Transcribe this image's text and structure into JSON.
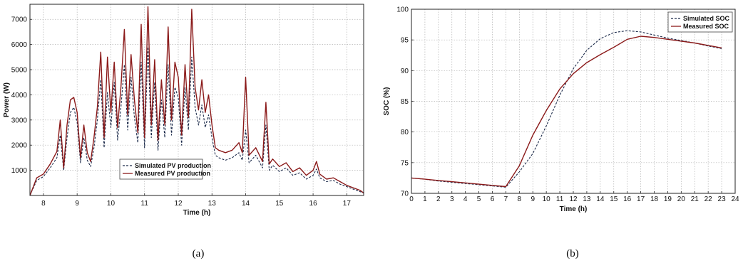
{
  "colors": {
    "simulated": "#1c2a4a",
    "measured": "#8b1a1a",
    "grid": "#b5b5b5"
  },
  "chart_data": [
    {
      "type": "line",
      "caption": "(a)",
      "xlabel": "Time (h)",
      "ylabel": "Power (W)",
      "xlim": [
        7.6,
        17.5
      ],
      "ylim": [
        0,
        7600
      ],
      "xticks": [
        8,
        9,
        10,
        11,
        12,
        13,
        14,
        15,
        16,
        17
      ],
      "yticks": [
        1000,
        2000,
        3000,
        4000,
        5000,
        6000,
        7000
      ],
      "grid": true,
      "legend": "bottom-center",
      "series": [
        {
          "name": "Simulated PV production",
          "style": "dashed",
          "x": [
            7.6,
            7.8,
            8.0,
            8.2,
            8.4,
            8.5,
            8.6,
            8.7,
            8.8,
            8.9,
            9.0,
            9.1,
            9.2,
            9.3,
            9.4,
            9.5,
            9.6,
            9.7,
            9.8,
            9.9,
            10.0,
            10.1,
            10.2,
            10.3,
            10.4,
            10.5,
            10.6,
            10.7,
            10.8,
            10.9,
            11.0,
            11.1,
            11.2,
            11.3,
            11.4,
            11.5,
            11.6,
            11.7,
            11.8,
            11.9,
            12.0,
            12.1,
            12.2,
            12.3,
            12.4,
            12.5,
            12.6,
            12.7,
            12.8,
            12.9,
            13.0,
            13.1,
            13.2,
            13.4,
            13.6,
            13.8,
            13.9,
            14.0,
            14.1,
            14.3,
            14.5,
            14.6,
            14.7,
            14.8,
            15.0,
            15.2,
            15.4,
            15.6,
            15.8,
            16.0,
            16.1,
            16.2,
            16.4,
            16.6,
            16.8,
            17.0,
            17.2,
            17.4,
            17.5
          ],
          "y": [
            0,
            600,
            750,
            1100,
            1500,
            2400,
            1000,
            2300,
            3300,
            3500,
            2900,
            1300,
            2300,
            1400,
            1150,
            1900,
            3000,
            4600,
            1900,
            4100,
            2700,
            4500,
            2200,
            3500,
            5200,
            2600,
            4700,
            3100,
            2100,
            5300,
            1900,
            5900,
            2300,
            4500,
            1800,
            3800,
            2300,
            5200,
            2400,
            4300,
            3900,
            2000,
            4300,
            2600,
            5500,
            3500,
            2800,
            3600,
            2700,
            3200,
            2300,
            1600,
            1500,
            1400,
            1500,
            1700,
            1400,
            2600,
            1300,
            1600,
            1100,
            2800,
            1000,
            1200,
            950,
            1100,
            800,
            900,
            650,
            800,
            1050,
            700,
            550,
            600,
            450,
            350,
            250,
            150,
            90
          ]
        },
        {
          "name": "Measured PV production",
          "style": "solid",
          "x": [
            7.6,
            7.8,
            8.0,
            8.2,
            8.4,
            8.5,
            8.6,
            8.7,
            8.8,
            8.9,
            9.0,
            9.1,
            9.2,
            9.3,
            9.4,
            9.5,
            9.6,
            9.7,
            9.8,
            9.9,
            10.0,
            10.1,
            10.2,
            10.3,
            10.4,
            10.5,
            10.6,
            10.7,
            10.8,
            10.9,
            11.0,
            11.1,
            11.2,
            11.3,
            11.4,
            11.5,
            11.6,
            11.7,
            11.8,
            11.9,
            12.0,
            12.1,
            12.2,
            12.3,
            12.4,
            12.5,
            12.6,
            12.7,
            12.8,
            12.9,
            13.0,
            13.1,
            13.2,
            13.4,
            13.6,
            13.8,
            13.9,
            14.0,
            14.1,
            14.3,
            14.5,
            14.6,
            14.7,
            14.8,
            15.0,
            15.2,
            15.4,
            15.6,
            15.8,
            16.0,
            16.1,
            16.2,
            16.4,
            16.6,
            16.8,
            17.0,
            17.2,
            17.4,
            17.5
          ],
          "y": [
            0,
            700,
            850,
            1250,
            1750,
            3000,
            1100,
            2800,
            3800,
            3900,
            3300,
            1500,
            2800,
            1700,
            1350,
            2300,
            3500,
            5700,
            2300,
            5500,
            3300,
            5300,
            2700,
            4300,
            6600,
            3200,
            5600,
            3800,
            2500,
            6800,
            2300,
            7500,
            2800,
            5400,
            2200,
            4600,
            2800,
            6700,
            3000,
            5300,
            4700,
            2400,
            5200,
            3100,
            7400,
            4300,
            3400,
            4600,
            3300,
            4000,
            2800,
            1900,
            1800,
            1700,
            1800,
            2100,
            1700,
            4700,
            1600,
            1900,
            1350,
            3700,
            1250,
            1450,
            1150,
            1300,
            950,
            1100,
            800,
            1000,
            1350,
            850,
            650,
            700,
            550,
            400,
            300,
            200,
            100
          ]
        }
      ]
    },
    {
      "type": "line",
      "caption": "(b)",
      "xlabel": "Time (h)",
      "ylabel": "SOC (%)",
      "xlim": [
        0,
        24
      ],
      "ylim": [
        70,
        100
      ],
      "xticks": [
        0,
        1,
        2,
        3,
        4,
        5,
        6,
        7,
        8,
        9,
        10,
        11,
        12,
        13,
        14,
        15,
        16,
        17,
        18,
        19,
        20,
        21,
        22,
        23,
        24
      ],
      "yticks": [
        70,
        75,
        80,
        85,
        90,
        95,
        100
      ],
      "grid": true,
      "legend": "top-right",
      "series": [
        {
          "name": "Simulated SOC",
          "style": "dashed",
          "x": [
            0,
            1,
            2,
            3,
            4,
            5,
            6,
            7,
            8,
            9,
            10,
            11,
            12,
            13,
            14,
            15,
            16,
            17,
            18,
            19,
            20,
            21,
            22,
            23
          ],
          "y": [
            72.5,
            72.3,
            72.0,
            71.8,
            71.6,
            71.4,
            71.2,
            71.0,
            73.5,
            76.5,
            81.0,
            86.0,
            90.3,
            93.3,
            95.2,
            96.2,
            96.5,
            96.3,
            95.8,
            95.3,
            94.9,
            94.5,
            94.0,
            93.6
          ]
        },
        {
          "name": "Measured SOC",
          "style": "solid",
          "x": [
            0,
            1,
            2,
            3,
            4,
            5,
            6,
            7,
            8,
            9,
            10,
            11,
            12,
            13,
            14,
            15,
            16,
            17,
            18,
            19,
            20,
            21,
            22,
            23
          ],
          "y": [
            72.5,
            72.3,
            72.1,
            71.9,
            71.7,
            71.5,
            71.3,
            71.1,
            74.5,
            79.5,
            83.5,
            87.0,
            89.5,
            91.3,
            92.6,
            93.8,
            95.1,
            95.6,
            95.4,
            95.1,
            94.8,
            94.5,
            94.1,
            93.7
          ]
        }
      ]
    }
  ]
}
